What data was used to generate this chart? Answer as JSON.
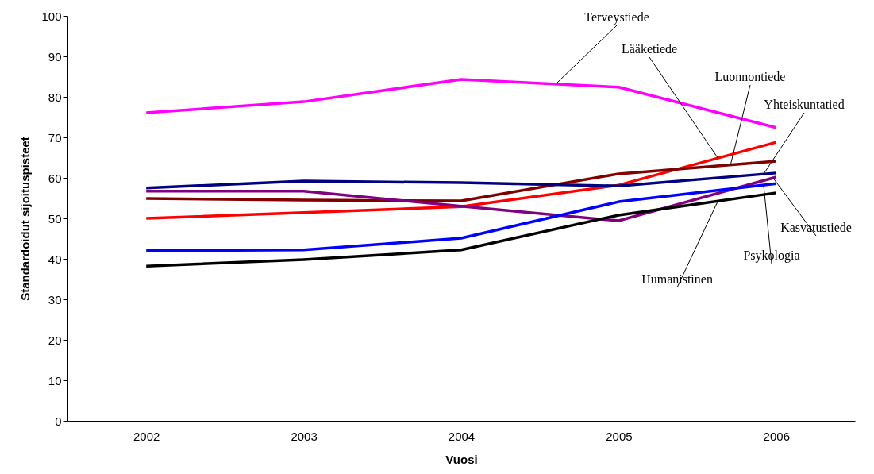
{
  "chart_data": {
    "type": "line",
    "xlabel": "Vuosi",
    "ylabel": "Standardoidut sijoituspisteet",
    "categories": [
      "2002",
      "2003",
      "2004",
      "2005",
      "2006"
    ],
    "ylim": [
      0,
      100
    ],
    "yticks": [
      0,
      10,
      20,
      30,
      40,
      50,
      60,
      70,
      80,
      90,
      100
    ],
    "grid": false,
    "line_style": "solid",
    "marker": "none",
    "series": [
      {
        "name": "Terveystiede",
        "color": "#ff00ff",
        "values": [
          76.1,
          78.8,
          84.3,
          82.4,
          72.4
        ]
      },
      {
        "name": "Lääketiede",
        "color": "#ff0000",
        "values": [
          50,
          51.4,
          52.9,
          58.2,
          68.8
        ]
      },
      {
        "name": "Luonnontiede",
        "color": "#800000",
        "values": [
          54.9,
          54.5,
          54.3,
          61,
          64.1
        ]
      },
      {
        "name": "Yhteiskuntatied",
        "color": "#000080",
        "values": [
          57.5,
          59.2,
          58.8,
          58,
          61.2
        ]
      },
      {
        "name": "Kasvatustiede",
        "color": "#800080",
        "values": [
          56.7,
          56.7,
          53,
          49.4,
          60.2
        ]
      },
      {
        "name": "Psykologia",
        "color": "#0000ff",
        "values": [
          42,
          42.2,
          45.1,
          54.1,
          58.6
        ]
      },
      {
        "name": "Humanistinen",
        "color": "#000000",
        "values": [
          38.2,
          39.8,
          42.2,
          50.8,
          56.3
        ]
      }
    ]
  }
}
